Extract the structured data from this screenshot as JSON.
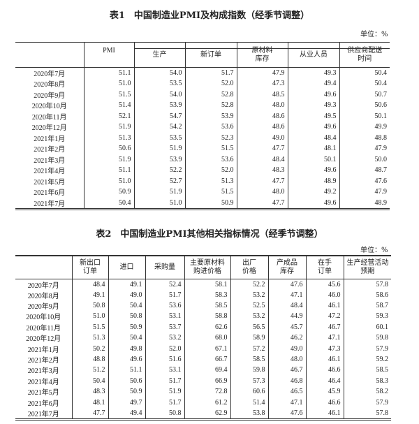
{
  "table1": {
    "title": "表1　中国制造业PMI及构成指数（经季节调整）",
    "unit": "单位：%",
    "headers": [
      "",
      "PMI",
      "生产",
      "新订单",
      "原材料\n库存",
      "从业人员",
      "供应商配送\n时间"
    ],
    "rows": [
      [
        "2020年7月",
        "51.1",
        "54.0",
        "51.7",
        "47.9",
        "49.3",
        "50.4"
      ],
      [
        "2020年8月",
        "51.0",
        "53.5",
        "52.0",
        "47.3",
        "49.4",
        "50.4"
      ],
      [
        "2020年9月",
        "51.5",
        "54.0",
        "52.8",
        "48.5",
        "49.6",
        "50.7"
      ],
      [
        "2020年10月",
        "51.4",
        "53.9",
        "52.8",
        "48.0",
        "49.3",
        "50.6"
      ],
      [
        "2020年11月",
        "52.1",
        "54.7",
        "53.9",
        "48.6",
        "49.5",
        "50.1"
      ],
      [
        "2020年12月",
        "51.9",
        "54.2",
        "53.6",
        "48.6",
        "49.6",
        "49.9"
      ],
      [
        "2021年1月",
        "51.3",
        "53.5",
        "52.3",
        "49.0",
        "48.4",
        "48.8"
      ],
      [
        "2021年2月",
        "50.6",
        "51.9",
        "51.5",
        "47.7",
        "48.1",
        "47.9"
      ],
      [
        "2021年3月",
        "51.9",
        "53.9",
        "53.6",
        "48.4",
        "50.1",
        "50.0"
      ],
      [
        "2021年4月",
        "51.1",
        "52.2",
        "52.0",
        "48.3",
        "49.6",
        "48.7"
      ],
      [
        "2021年5月",
        "51.0",
        "52.7",
        "51.3",
        "47.7",
        "48.9",
        "47.6"
      ],
      [
        "2021年6月",
        "50.9",
        "51.9",
        "51.5",
        "48.0",
        "49.2",
        "47.9"
      ],
      [
        "2021年7月",
        "50.4",
        "51.0",
        "50.9",
        "47.7",
        "49.6",
        "48.9"
      ]
    ]
  },
  "table2": {
    "title": "表2　中国制造业PMI其他相关指标情况（经季节调整）",
    "unit": "单位：%",
    "headers": [
      "",
      "新出口\n订单",
      "进口",
      "采购量",
      "主要原材料\n购进价格",
      "出厂\n价格",
      "产成品\n库存",
      "在手\n订单",
      "生产经营活动\n预期"
    ],
    "rows": [
      [
        "2020年7月",
        "48.4",
        "49.1",
        "52.4",
        "58.1",
        "52.2",
        "47.6",
        "45.6",
        "57.8"
      ],
      [
        "2020年8月",
        "49.1",
        "49.0",
        "51.7",
        "58.3",
        "53.2",
        "47.1",
        "46.0",
        "58.6"
      ],
      [
        "2020年9月",
        "50.8",
        "50.4",
        "53.6",
        "58.5",
        "52.5",
        "48.4",
        "46.1",
        "58.7"
      ],
      [
        "2020年10月",
        "51.0",
        "50.8",
        "53.1",
        "58.8",
        "53.2",
        "44.9",
        "47.2",
        "59.3"
      ],
      [
        "2020年11月",
        "51.5",
        "50.9",
        "53.7",
        "62.6",
        "56.5",
        "45.7",
        "46.7",
        "60.1"
      ],
      [
        "2020年12月",
        "51.3",
        "50.4",
        "53.2",
        "68.0",
        "58.9",
        "46.2",
        "47.1",
        "59.8"
      ],
      [
        "2021年1月",
        "50.2",
        "49.8",
        "52.0",
        "67.1",
        "57.2",
        "49.0",
        "47.3",
        "57.9"
      ],
      [
        "2021年2月",
        "48.8",
        "49.6",
        "51.6",
        "66.7",
        "58.5",
        "48.0",
        "46.1",
        "59.2"
      ],
      [
        "2021年3月",
        "51.2",
        "51.1",
        "53.1",
        "69.4",
        "59.8",
        "46.7",
        "46.6",
        "58.5"
      ],
      [
        "2021年4月",
        "50.4",
        "50.6",
        "51.7",
        "66.9",
        "57.3",
        "46.8",
        "46.4",
        "58.3"
      ],
      [
        "2021年5月",
        "48.3",
        "50.9",
        "51.9",
        "72.8",
        "60.6",
        "46.5",
        "45.9",
        "58.2"
      ],
      [
        "2021年6月",
        "48.1",
        "49.7",
        "51.7",
        "61.2",
        "51.4",
        "47.1",
        "46.6",
        "57.9"
      ],
      [
        "2021年7月",
        "47.7",
        "49.4",
        "50.8",
        "62.9",
        "53.8",
        "47.6",
        "46.1",
        "57.8"
      ]
    ]
  }
}
